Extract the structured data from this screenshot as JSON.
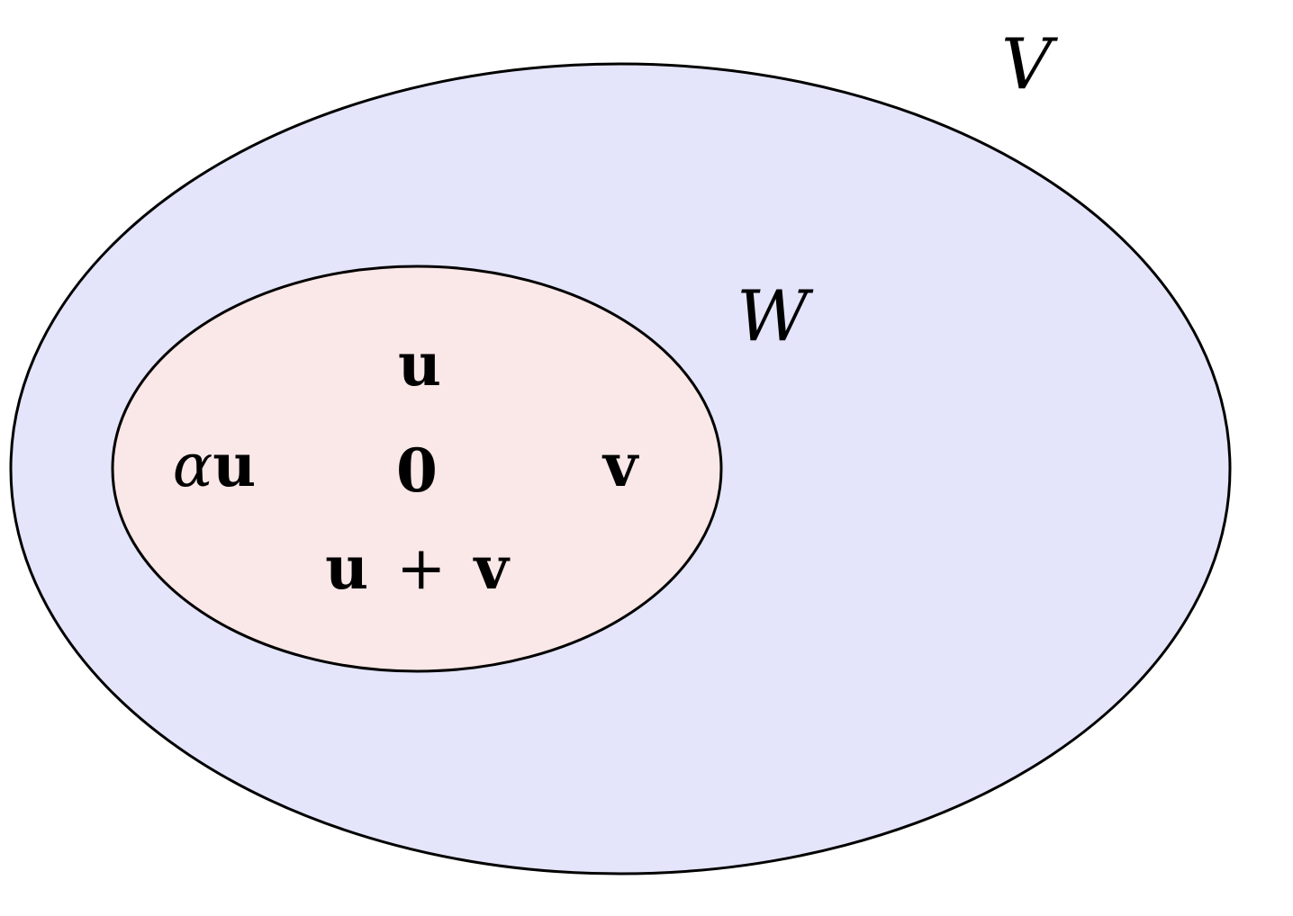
{
  "sets": {
    "outer": {
      "label": "V",
      "fill": "#e4e5fa",
      "stroke": "#000000"
    },
    "inner": {
      "label": "W",
      "fill": "#fae7e7",
      "stroke": "#000000"
    }
  },
  "elements": {
    "u": "u",
    "zero": "0",
    "v": "v",
    "alpha_u": {
      "scalar": "α",
      "vector": "u"
    },
    "u_plus_v": {
      "left": "u",
      "operator": "+",
      "right": "v"
    }
  }
}
